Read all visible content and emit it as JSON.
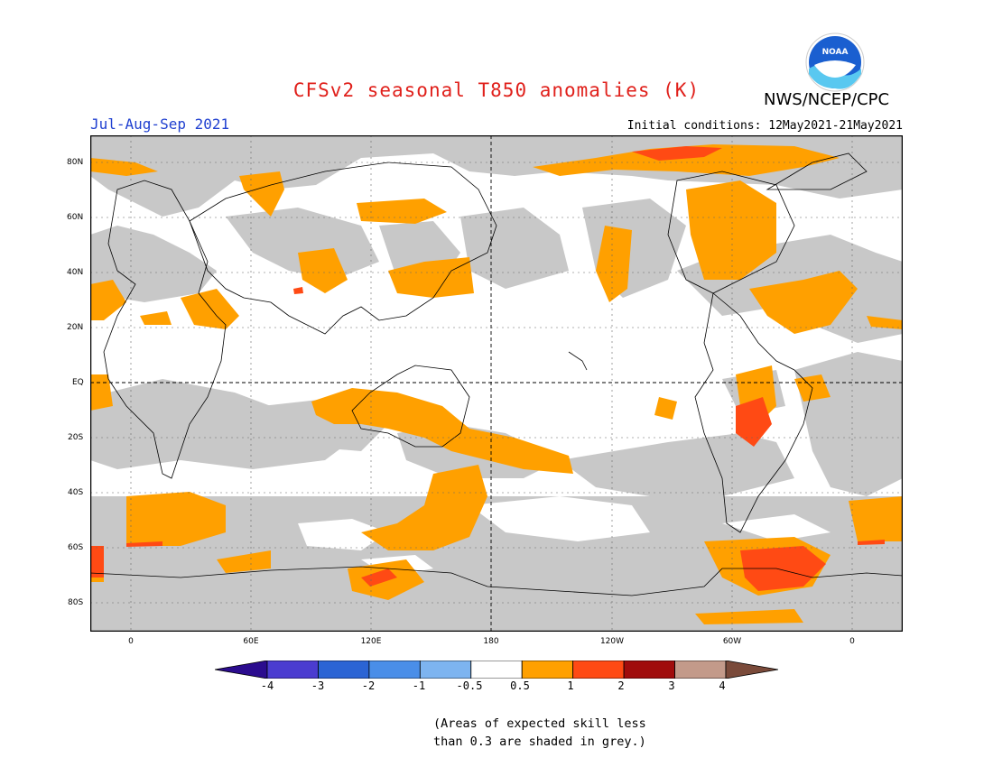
{
  "header": {
    "title": "CFSv2 seasonal T850 anomalies (K)",
    "agency": "NWS/NCEP/CPC",
    "season": "Jul-Aug-Sep 2021",
    "initial_conditions": "Initial conditions: 12May2021-21May2021",
    "logo_text": "NOAA"
  },
  "map": {
    "lat_labels": [
      "80N",
      "60N",
      "40N",
      "20N",
      "EQ",
      "20S",
      "40S",
      "60S",
      "80S"
    ],
    "lon_labels": [
      "0",
      "60E",
      "120E",
      "180",
      "120W",
      "60W",
      "0"
    ]
  },
  "colorbar": {
    "labels": [
      "-4",
      "-3",
      "-2",
      "-1",
      "-0.5",
      "0.5",
      "1",
      "2",
      "3",
      "4"
    ],
    "colors": [
      "#2b0c8e",
      "#4b3cd0",
      "#2b64d4",
      "#4a8ee8",
      "#7db4f0",
      "#ffffff",
      "#ffa000",
      "#ff4a14",
      "#a00c0c",
      "#c39a8a",
      "#7a4a3a"
    ]
  },
  "note": {
    "line1": "(Areas of expected skill less",
    "line2": "than 0.3 are shaded in grey.)"
  },
  "colors": {
    "title": "#e0201b",
    "season": "#2040d0",
    "grey": "#c8c8c8",
    "orange": "#ffa000",
    "red": "#ff4a14"
  }
}
